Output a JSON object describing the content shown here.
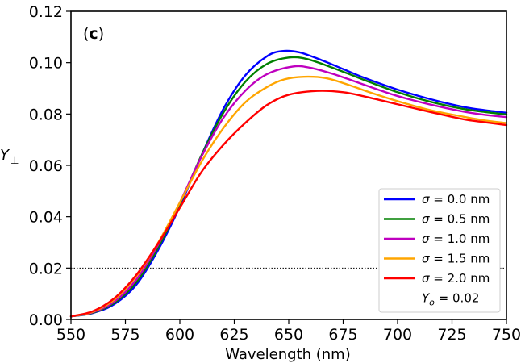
{
  "chart_data": {
    "type": "line",
    "panel_label": "(",
    "panel_label_bold": "c",
    "panel_label_close": ")",
    "xlabel": "Wavelength (nm)",
    "ylabel_main": "Y",
    "ylabel_sub": "⊥",
    "xlim": [
      550,
      750
    ],
    "ylim": [
      0,
      0.12
    ],
    "xticks": [
      550,
      575,
      600,
      625,
      650,
      675,
      700,
      725,
      750
    ],
    "xtick_labels": [
      "550",
      "575",
      "600",
      "625",
      "650",
      "675",
      "700",
      "725",
      "750"
    ],
    "yticks": [
      0,
      0.02,
      0.04,
      0.06,
      0.08,
      0.1,
      0.12
    ],
    "ytick_labels": [
      "0.00",
      "0.02",
      "0.04",
      "0.06",
      "0.08",
      "0.10",
      "0.12"
    ],
    "legend_position": "lower-right",
    "series": [
      {
        "name": "σ = 0.0 nm",
        "sigma_symbol": "σ",
        "sigma_text": " = 0.0 nm",
        "color": "#0000ff",
        "x": [
          550,
          560,
          570,
          580,
          590,
          600,
          610,
          620,
          630,
          640,
          647,
          655,
          665,
          675,
          685,
          700,
          715,
          730,
          740,
          750
        ],
        "y": [
          0.0012,
          0.0025,
          0.006,
          0.0135,
          0.027,
          0.044,
          0.064,
          0.082,
          0.095,
          0.1025,
          0.1045,
          0.104,
          0.101,
          0.0975,
          0.094,
          0.0895,
          0.0858,
          0.0828,
          0.0815,
          0.0805
        ]
      },
      {
        "name": "σ = 0.5 nm",
        "sigma_symbol": "σ",
        "sigma_text": " = 0.5 nm",
        "color": "#008000",
        "x": [
          550,
          560,
          570,
          580,
          590,
          600,
          610,
          620,
          630,
          640,
          650,
          658,
          667,
          677,
          687,
          700,
          715,
          730,
          740,
          750
        ],
        "y": [
          0.0012,
          0.0026,
          0.0065,
          0.0145,
          0.028,
          0.045,
          0.064,
          0.0805,
          0.0925,
          0.0995,
          0.102,
          0.1015,
          0.099,
          0.0958,
          0.0925,
          0.0885,
          0.0848,
          0.082,
          0.0808,
          0.0798
        ]
      },
      {
        "name": "σ = 1.0 nm",
        "sigma_symbol": "σ",
        "sigma_text": " = 1.0 nm",
        "color": "#bf00bf",
        "x": [
          550,
          560,
          570,
          580,
          590,
          600,
          610,
          620,
          630,
          640,
          652,
          660,
          670,
          680,
          690,
          700,
          715,
          730,
          740,
          750
        ],
        "y": [
          0.0012,
          0.0028,
          0.007,
          0.0155,
          0.029,
          0.0455,
          0.0635,
          0.0785,
          0.089,
          0.0955,
          0.0985,
          0.098,
          0.0957,
          0.0928,
          0.0898,
          0.087,
          0.0837,
          0.081,
          0.0797,
          0.0788
        ]
      },
      {
        "name": "σ = 1.5 nm",
        "sigma_symbol": "σ",
        "sigma_text": " = 1.5 nm",
        "color": "#ffa500",
        "x": [
          550,
          560,
          570,
          580,
          590,
          600,
          610,
          620,
          630,
          640,
          648,
          657,
          667,
          677,
          687,
          700,
          715,
          730,
          740,
          750
        ],
        "y": [
          0.0012,
          0.003,
          0.0078,
          0.0168,
          0.0298,
          0.0455,
          0.0615,
          0.0745,
          0.0845,
          0.0905,
          0.0935,
          0.0945,
          0.094,
          0.0915,
          0.0885,
          0.085,
          0.0815,
          0.079,
          0.0775,
          0.0765
        ]
      },
      {
        "name": "σ = 2.0 nm",
        "sigma_symbol": "σ",
        "sigma_text": " = 2.0 nm",
        "color": "#ff0000",
        "x": [
          550,
          560,
          570,
          580,
          590,
          600,
          610,
          620,
          630,
          640,
          650,
          663,
          675,
          685,
          700,
          715,
          730,
          740,
          750
        ],
        "y": [
          0.0012,
          0.0032,
          0.0083,
          0.0173,
          0.0296,
          0.0435,
          0.0575,
          0.068,
          0.0765,
          0.0835,
          0.0875,
          0.089,
          0.0885,
          0.0868,
          0.0838,
          0.0808,
          0.078,
          0.0768,
          0.0757
        ]
      }
    ],
    "reference_line": {
      "name": "Yo = 0.02",
      "label_main": "Y",
      "label_sub": "o",
      "label_rest": " = 0.02",
      "y": 0.02,
      "style": "dotted",
      "color": "#000000"
    }
  }
}
